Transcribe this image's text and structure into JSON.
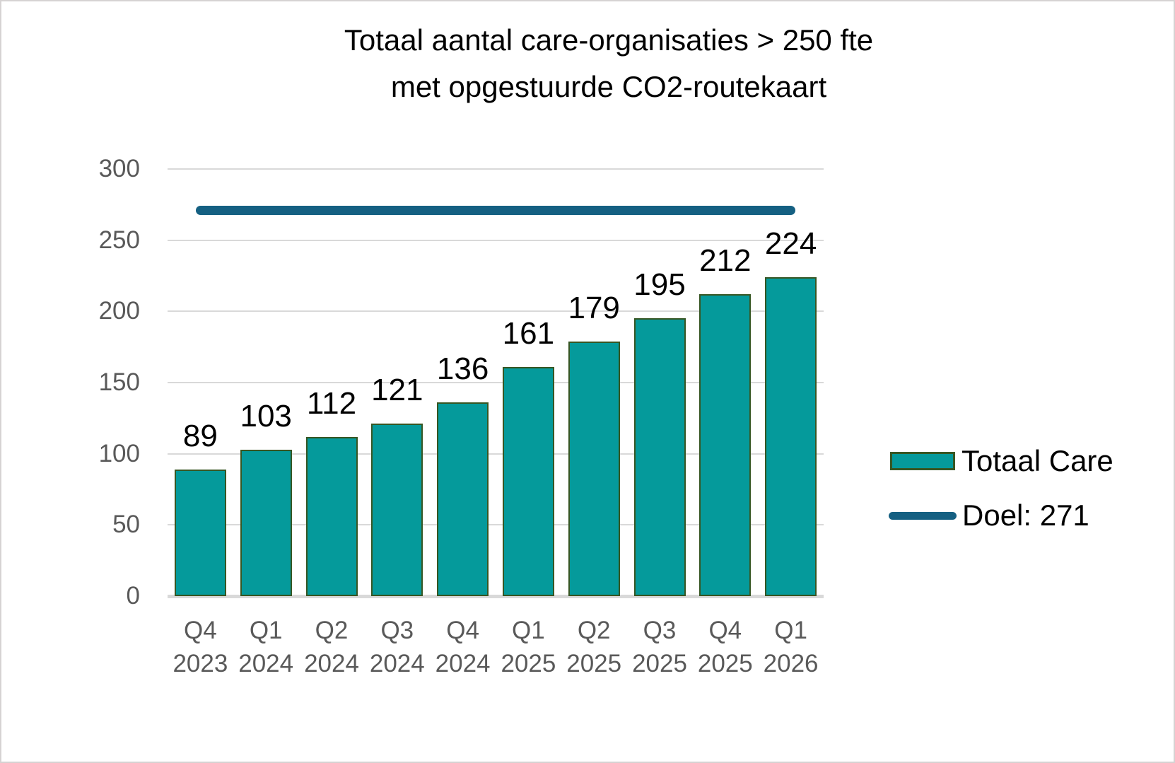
{
  "title": {
    "line1": "Totaal aantal care-organisaties > 250 fte",
    "line2": "met opgestuurde CO2-routekaart"
  },
  "legend": {
    "bar_item_label": "Totaal Care",
    "line_item_label": "Doel: 271"
  },
  "chart_data": {
    "type": "bar",
    "title": "Totaal aantal care-organisaties > 250 fte met opgestuurde CO2-routekaart",
    "categories": [
      "Q4 2023",
      "Q1 2024",
      "Q2 2024",
      "Q3 2024",
      "Q4 2024",
      "Q1 2025",
      "Q2 2025",
      "Q3 2025",
      "Q4 2025",
      "Q1 2026"
    ],
    "category_quarters": [
      "Q4",
      "Q1",
      "Q2",
      "Q3",
      "Q4",
      "Q1",
      "Q2",
      "Q3",
      "Q4",
      "Q1"
    ],
    "category_years": [
      "2023",
      "2024",
      "2024",
      "2024",
      "2024",
      "2025",
      "2025",
      "2025",
      "2025",
      "2026"
    ],
    "series": [
      {
        "name": "Totaal Care",
        "type": "bar",
        "values": [
          89,
          103,
          112,
          121,
          136,
          161,
          179,
          195,
          212,
          224
        ]
      },
      {
        "name": "Doel: 271",
        "type": "line",
        "value": 271
      }
    ],
    "data_labels_shown": true,
    "ylim": [
      0,
      300
    ],
    "yticks": [
      0,
      50,
      100,
      150,
      200,
      250,
      300
    ],
    "grid": true,
    "legend_position": "right",
    "colors": {
      "bar_fill": "#059a9b",
      "bar_border": "#375623",
      "goal_line": "#156082",
      "gridline": "#d9d9d9",
      "baseline": "#d9d9d9",
      "axis_text": "#595959",
      "value_label_text": "#000000",
      "title_text": "#000000"
    }
  }
}
